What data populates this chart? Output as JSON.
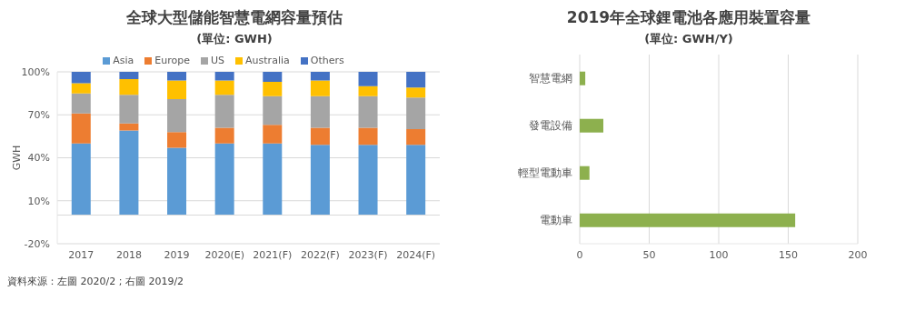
{
  "chart_data": [
    {
      "type": "bar",
      "title": "全球大型儲能智慧電網容量預估",
      "subtitle": "(單位: GWH)",
      "ylabel": "GWH",
      "stacked": true,
      "legend": "top",
      "grid": "y",
      "categories": [
        "2017",
        "2018",
        "2019",
        "2020(E)",
        "2021(F)",
        "2022(F)",
        "2023(F)",
        "2024(F)"
      ],
      "series": [
        {
          "name": "Asia",
          "color": "#5b9bd5",
          "values": [
            50,
            59,
            47,
            50,
            50,
            49,
            49,
            49
          ]
        },
        {
          "name": "Europe",
          "color": "#ed7d31",
          "values": [
            21,
            5,
            11,
            11,
            13,
            12,
            12,
            11
          ]
        },
        {
          "name": "US",
          "color": "#a5a5a5",
          "values": [
            14,
            20,
            23,
            23,
            20,
            22,
            22,
            22
          ]
        },
        {
          "name": "Australia",
          "color": "#ffc000",
          "values": [
            7,
            11,
            13,
            10,
            10,
            11,
            7,
            7
          ]
        },
        {
          "name": "Others",
          "color": "#4472c4",
          "values": [
            8,
            5,
            6,
            6,
            7,
            6,
            10,
            11
          ]
        }
      ],
      "ylim": [
        -20,
        100
      ],
      "yticks": [
        {
          "value": -20,
          "label": "-20%"
        },
        {
          "value": 10,
          "label": "10%"
        },
        {
          "value": 40,
          "label": "40%"
        },
        {
          "value": 70,
          "label": "70%"
        },
        {
          "value": 100,
          "label": "100%"
        }
      ],
      "ref_lines": [
        {
          "axis": "y",
          "value": 0,
          "color": "#d9d9d9"
        }
      ],
      "annotations": [
        "資料來源：左圖 2020/2 ; 右圖 2019/2"
      ]
    },
    {
      "type": "bar",
      "title": "2019年全球鋰電池各應用裝置容量",
      "subtitle": "(單位: GWH/Y)",
      "orientation": "horizontal",
      "grid": "x",
      "categories": [
        "智慧電網",
        "發電設備",
        "輕型電動車",
        "電動車"
      ],
      "color": "#8db04e",
      "values": [
        4,
        17,
        7,
        155
      ],
      "xlim": [
        0,
        200
      ],
      "xticks": [
        0,
        50,
        100,
        150,
        200
      ]
    }
  ]
}
